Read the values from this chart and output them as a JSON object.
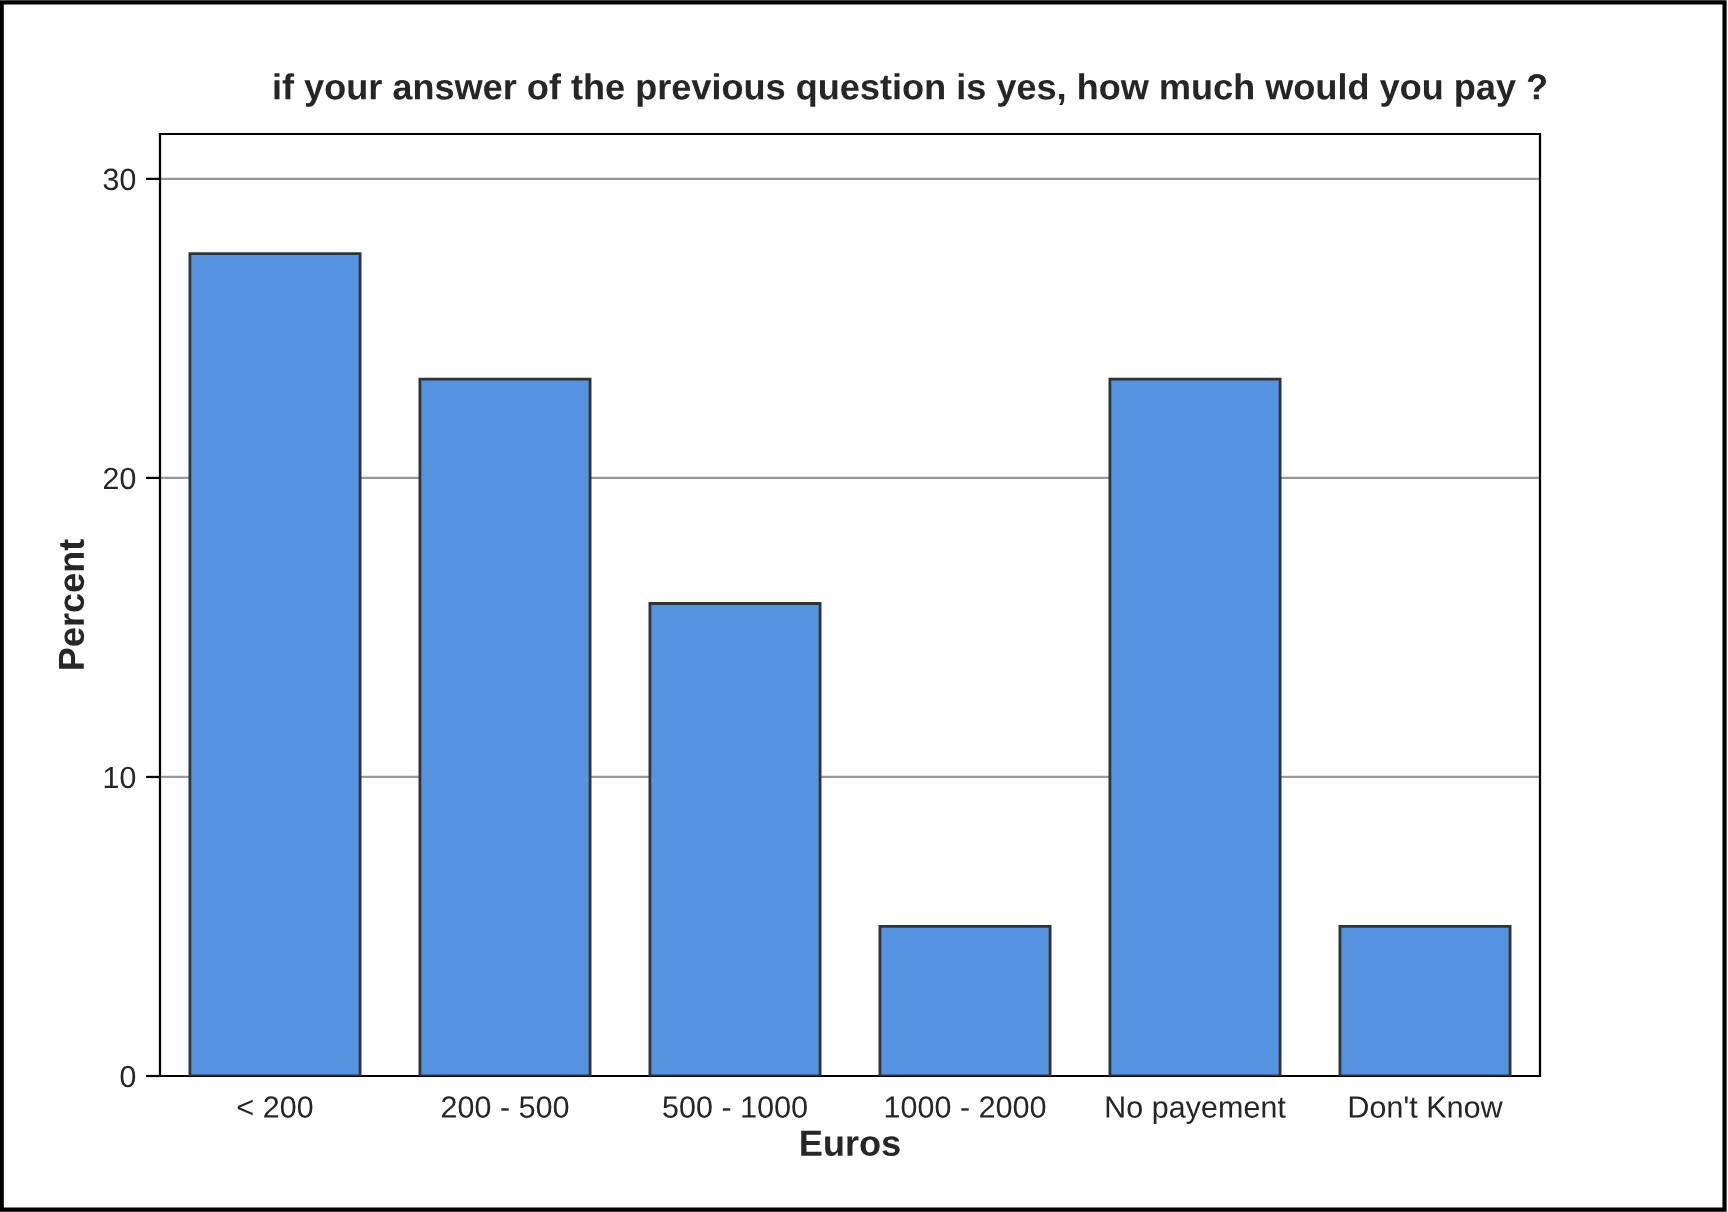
{
  "chart_data": {
    "type": "bar",
    "title": "if your answer of the previous question is yes, how much would you pay ?",
    "xlabel": "Euros",
    "ylabel": "Percent",
    "categories": [
      "< 200",
      "200 - 500",
      "500 - 1000",
      "1000 - 2000",
      "No payement",
      "Don't Know"
    ],
    "values": [
      27.5,
      23.3,
      15.8,
      5.0,
      23.3,
      5.0
    ],
    "color": "#5493e0",
    "ylim": [
      0,
      31.5
    ],
    "yticks": [
      0,
      10,
      20,
      30
    ],
    "grid": "y",
    "legend": false
  }
}
